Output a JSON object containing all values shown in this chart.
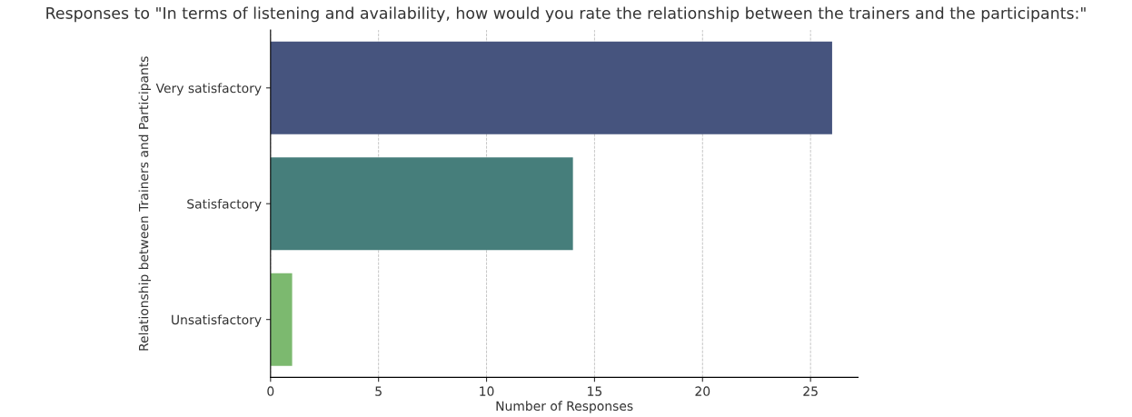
{
  "chart_data": {
    "type": "bar",
    "orientation": "horizontal",
    "title": "Responses to \"In terms of listening and availability, how would you rate the relationship between the trainers and the participants:\"",
    "xlabel": "Number of Responses",
    "ylabel": "Relationship between Trainers and Participants",
    "categories": [
      "Very satisfactory",
      "Satisfactory",
      "Unsatisfactory"
    ],
    "values": [
      26,
      14,
      1
    ],
    "colors": [
      "#46547e",
      "#467e7b",
      "#7cb96f"
    ],
    "xlim": [
      0,
      27.2
    ],
    "xticks": [
      0,
      5,
      10,
      15,
      20,
      25
    ],
    "grid": "x"
  }
}
